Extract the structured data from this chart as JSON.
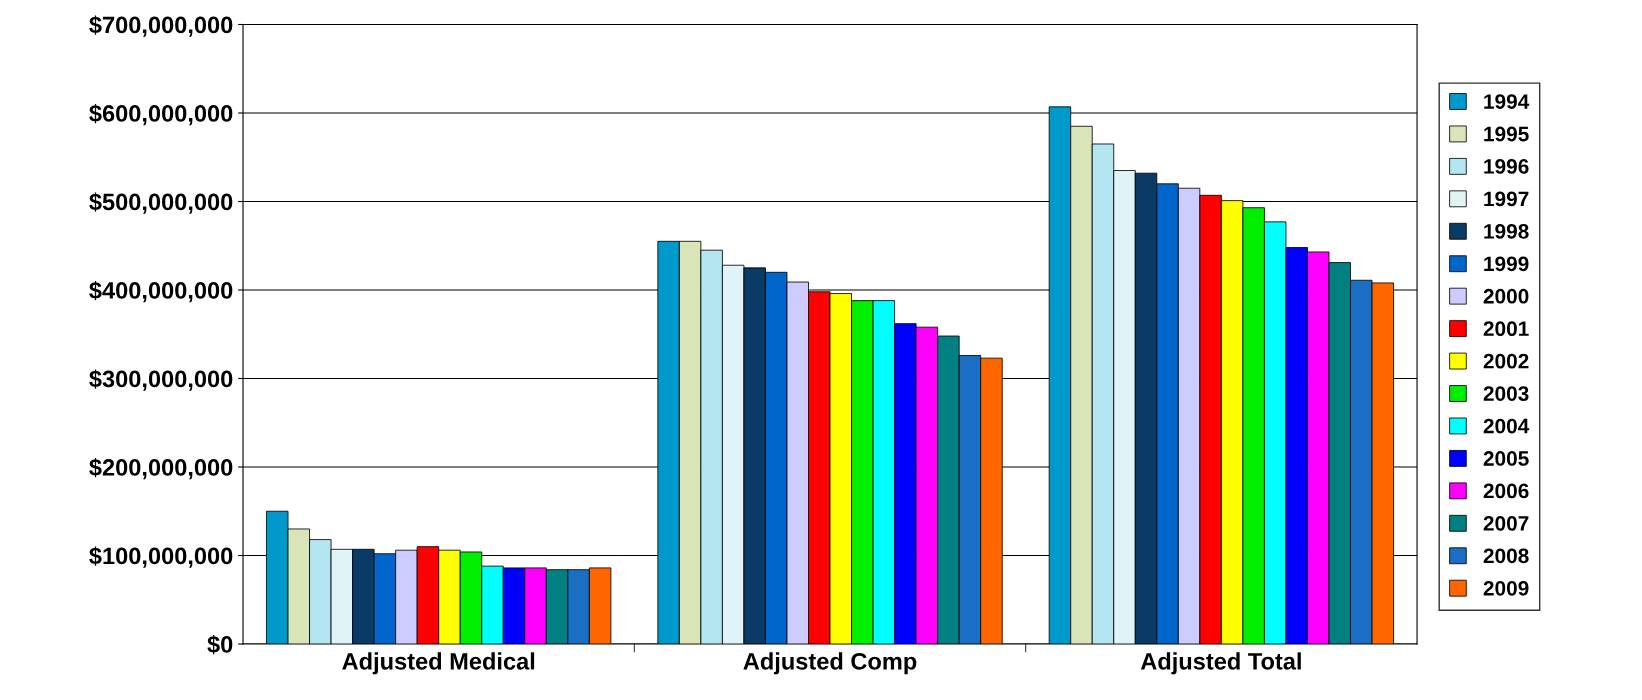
{
  "chart_data": {
    "type": "bar",
    "categories": [
      "Adjusted Medical",
      "Adjusted Comp",
      "Adjusted Total"
    ],
    "series": [
      {
        "name": "1994",
        "color": "#0099cc",
        "values": [
          150000000,
          455000000,
          607000000
        ]
      },
      {
        "name": "1995",
        "color": "#d9e4b8",
        "values": [
          130000000,
          455000000,
          585000000
        ]
      },
      {
        "name": "1996",
        "color": "#b3e6f0",
        "values": [
          118000000,
          445000000,
          565000000
        ]
      },
      {
        "name": "1997",
        "color": "#e0f4f8",
        "values": [
          107000000,
          428000000,
          535000000
        ]
      },
      {
        "name": "1998",
        "color": "#0a3a66",
        "values": [
          107000000,
          425000000,
          532000000
        ]
      },
      {
        "name": "1999",
        "color": "#0066cc",
        "values": [
          102000000,
          420000000,
          520000000
        ]
      },
      {
        "name": "2000",
        "color": "#ccccff",
        "values": [
          106000000,
          409000000,
          515000000
        ]
      },
      {
        "name": "2001",
        "color": "#ff0000",
        "values": [
          110000000,
          398000000,
          507000000
        ]
      },
      {
        "name": "2002",
        "color": "#ffff00",
        "values": [
          106000000,
          396000000,
          501000000
        ]
      },
      {
        "name": "2003",
        "color": "#00ee00",
        "values": [
          104000000,
          388000000,
          493000000
        ]
      },
      {
        "name": "2004",
        "color": "#00ffff",
        "values": [
          88000000,
          388000000,
          477000000
        ]
      },
      {
        "name": "2005",
        "color": "#0000ff",
        "values": [
          86000000,
          362000000,
          448000000
        ]
      },
      {
        "name": "2006",
        "color": "#ff00ff",
        "values": [
          86000000,
          358000000,
          443000000
        ]
      },
      {
        "name": "2007",
        "color": "#008080",
        "values": [
          84000000,
          348000000,
          431000000
        ]
      },
      {
        "name": "2008",
        "color": "#1a6fc4",
        "values": [
          84000000,
          326000000,
          411000000
        ]
      },
      {
        "name": "2009",
        "color": "#ff6600",
        "values": [
          86000000,
          323000000,
          408000000
        ]
      }
    ],
    "ylim": [
      0,
      700000000
    ],
    "yticks": [
      {
        "value": 0,
        "label": "$0"
      },
      {
        "value": 100000000,
        "label": "$100,000,000"
      },
      {
        "value": 200000000,
        "label": "$200,000,000"
      },
      {
        "value": 300000000,
        "label": "$300,000,000"
      },
      {
        "value": 400000000,
        "label": "$400,000,000"
      },
      {
        "value": 500000000,
        "label": "$500,000,000"
      },
      {
        "value": 600000000,
        "label": "$600,000,000"
      },
      {
        "value": 700000000,
        "label": "$700,000,000"
      }
    ],
    "grid": "y",
    "legend": "right"
  }
}
